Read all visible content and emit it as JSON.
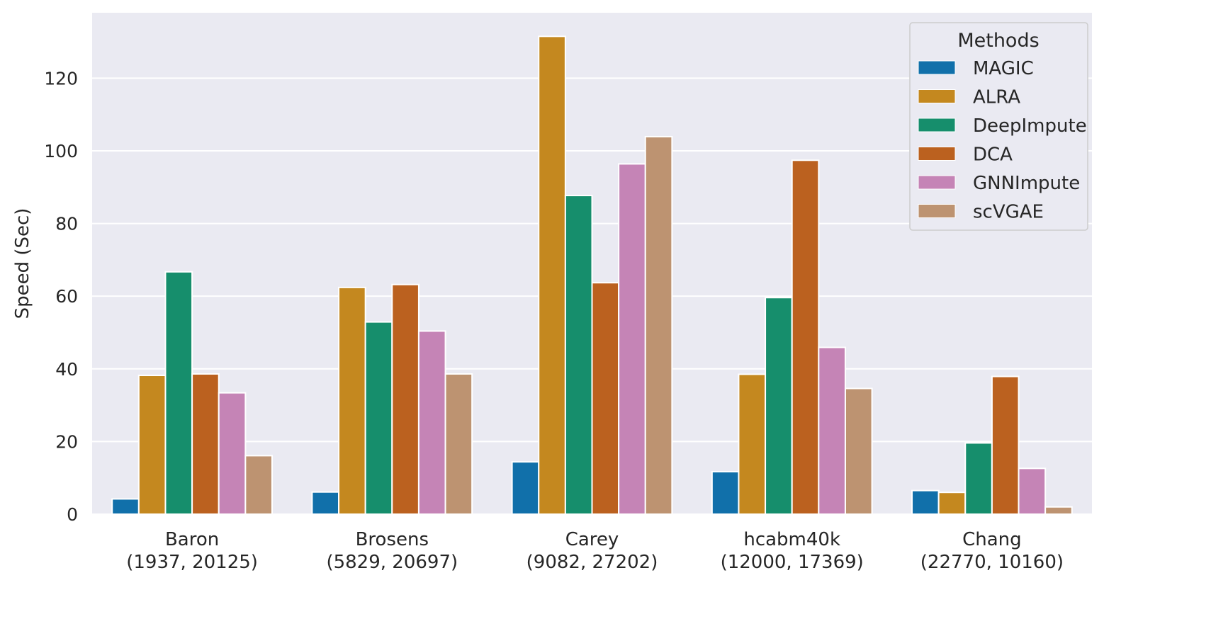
{
  "chart_data": {
    "type": "bar",
    "title": "",
    "xlabel": "",
    "ylabel": "Speed (Sec)",
    "ylim": [
      0,
      138
    ],
    "yticks": [
      0,
      20,
      40,
      60,
      80,
      100,
      120
    ],
    "grid": true,
    "categories": [
      {
        "name": "Baron",
        "dims": "(1937, 20125)"
      },
      {
        "name": "Brosens",
        "dims": "(5829, 20697)"
      },
      {
        "name": "Carey",
        "dims": "(9082, 27202)"
      },
      {
        "name": "hcabm40k",
        "dims": "(12000, 17369)"
      },
      {
        "name": "Chang",
        "dims": "(22770, 10160)"
      }
    ],
    "legend": {
      "title": "Methods",
      "placement": "top-right"
    },
    "series": [
      {
        "name": "MAGIC",
        "color": "#1170aa",
        "values": [
          4.2,
          6.1,
          14.4,
          11.7,
          6.5
        ]
      },
      {
        "name": "ALRA",
        "color": "#c4881f",
        "values": [
          38.2,
          62.4,
          131.5,
          38.5,
          6.0
        ]
      },
      {
        "name": "DeepImpute",
        "color": "#168e6c",
        "values": [
          66.7,
          52.9,
          87.7,
          59.6,
          19.6
        ]
      },
      {
        "name": "DCA",
        "color": "#bb611f",
        "values": [
          38.6,
          63.2,
          63.7,
          97.4,
          37.9
        ]
      },
      {
        "name": "GNNImpute",
        "color": "#c584b6",
        "values": [
          33.4,
          50.4,
          96.4,
          45.9,
          12.6
        ]
      },
      {
        "name": "scVGAE",
        "color": "#bd9371",
        "values": [
          16.1,
          38.6,
          103.9,
          34.6,
          2.0
        ]
      }
    ]
  }
}
